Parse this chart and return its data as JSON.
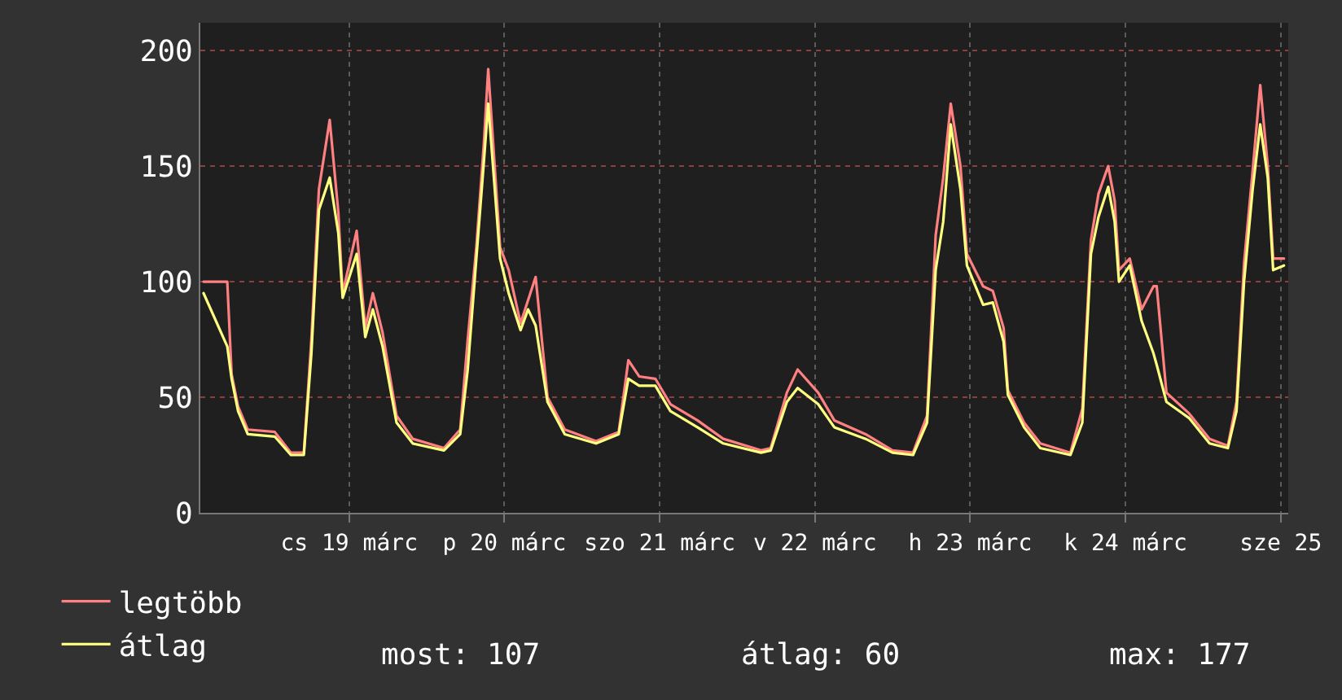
{
  "chart_data": {
    "type": "line",
    "x": [
      "--03-18T13:30",
      "--03-18T17:10",
      "--03-18T17:50",
      "--03-18T18:50",
      "--03-18T20:20",
      "--03-19T00:30",
      "--03-19T03:00",
      "--03-19T05:00",
      "--03-19T06:10",
      "--03-19T07:20",
      "--03-19T09:00",
      "--03-19T10:20",
      "--03-19T11:00",
      "--03-19T13:10",
      "--03-19T14:30",
      "--03-19T15:40",
      "--03-19T17:10",
      "--03-19T19:20",
      "--03-19T21:50",
      "--03-20T02:40",
      "--03-20T05:10",
      "--03-20T06:20",
      "--03-20T07:40",
      "--03-20T08:50",
      "--03-20T09:30",
      "--03-20T11:20",
      "--03-20T12:40",
      "--03-20T14:30",
      "--03-20T15:40",
      "--03-20T16:50",
      "--03-20T18:40",
      "--03-20T21:20",
      "--03-21T02:10",
      "--03-21T05:40",
      "--03-21T07:10",
      "--03-21T08:50",
      "--03-21T11:20",
      "--03-21T13:40",
      "--03-21T17:50",
      "--03-21T21:50",
      "--03-22T03:40",
      "--03-22T05:10",
      "--03-22T07:40",
      "--03-22T09:20",
      "--03-22T12:30",
      "--03-22T15:00",
      "--03-22T19:50",
      "--03-23T00:00",
      "--03-23T03:10",
      "--03-23T05:20",
      "--03-23T06:40",
      "--03-23T07:50",
      "--03-23T09:00",
      "--03-23T10:30",
      "--03-23T11:30",
      "--03-23T14:00",
      "--03-23T15:30",
      "--03-23T17:10",
      "--03-23T17:50",
      "--03-23T20:20",
      "--03-23T22:50",
      "--03-24T03:30",
      "--03-24T05:20",
      "--03-24T06:40",
      "--03-24T07:50",
      "--03-24T09:20",
      "--03-24T10:20",
      "--03-24T11:00",
      "--03-24T12:40",
      "--03-24T14:30",
      "--03-24T16:20",
      "--03-24T16:50",
      "--03-24T18:20",
      "--03-24T21:50",
      "--03-25T01:00",
      "--03-25T03:50",
      "--03-25T05:10",
      "--03-25T06:20",
      "--03-25T07:40",
      "--03-25T08:50",
      "--03-25T10:00",
      "--03-25T10:50",
      "--03-25T12:30"
    ],
    "series": [
      {
        "name": "legtöbb",
        "color": "#ff8080",
        "values": [
          100,
          100,
          60,
          46,
          36,
          35,
          26,
          26,
          75,
          140,
          170,
          130,
          95,
          122,
          80,
          95,
          78,
          42,
          32,
          28,
          36,
          75,
          115,
          160,
          192,
          115,
          105,
          82,
          92,
          102,
          50,
          36,
          31,
          35,
          66,
          59,
          58,
          47,
          40,
          32,
          27,
          28,
          52,
          62,
          52,
          40,
          34,
          27,
          26,
          42,
          120,
          145,
          177,
          150,
          112,
          98,
          96,
          80,
          53,
          39,
          30,
          26,
          45,
          118,
          138,
          150,
          135,
          105,
          110,
          88,
          98,
          98,
          52,
          43,
          32,
          29,
          48,
          108,
          148,
          185,
          150,
          110,
          110
        ]
      },
      {
        "name": "átlag",
        "color": "#ffff80",
        "values": [
          95,
          72,
          58,
          44,
          34,
          33,
          25,
          25,
          69,
          131,
          145,
          121,
          93,
          112,
          76,
          88,
          72,
          39,
          30,
          27,
          34,
          62,
          110,
          152,
          177,
          110,
          95,
          79,
          88,
          81,
          48,
          34,
          30,
          34,
          58,
          55,
          55,
          44,
          37,
          30,
          26,
          27,
          48,
          54,
          47,
          37,
          32,
          26,
          25,
          39,
          105,
          126,
          168,
          140,
          107,
          90,
          91,
          74,
          51,
          37,
          28,
          25,
          39,
          112,
          128,
          141,
          126,
          100,
          107,
          83,
          69,
          64,
          48,
          41,
          30,
          28,
          44,
          100,
          140,
          168,
          145,
          105,
          107
        ]
      }
    ],
    "xlim": [
      "--03-18T13:00",
      "--03-25T13:10"
    ],
    "xticks": [
      {
        "value": "--03-19T12:00",
        "label": "cs 19 márc"
      },
      {
        "value": "--03-20T12:00",
        "label": "p 20 márc"
      },
      {
        "value": "--03-21T12:00",
        "label": "szo 21 márc"
      },
      {
        "value": "--03-22T12:00",
        "label": "v 22 márc"
      },
      {
        "value": "--03-23T12:00",
        "label": "h 23 márc"
      },
      {
        "value": "--03-24T12:00",
        "label": "k 24 márc"
      },
      {
        "value": "--03-25T12:00",
        "label": "sze 25"
      }
    ],
    "ylim": [
      0,
      212
    ],
    "yticks": [
      0,
      50,
      100,
      150,
      200
    ],
    "grid": true,
    "legend": "bottom left",
    "line_style": "solid",
    "marker": "none",
    "annotations": [
      "most: 107",
      "átlag: 60",
      "max: 177"
    ]
  }
}
